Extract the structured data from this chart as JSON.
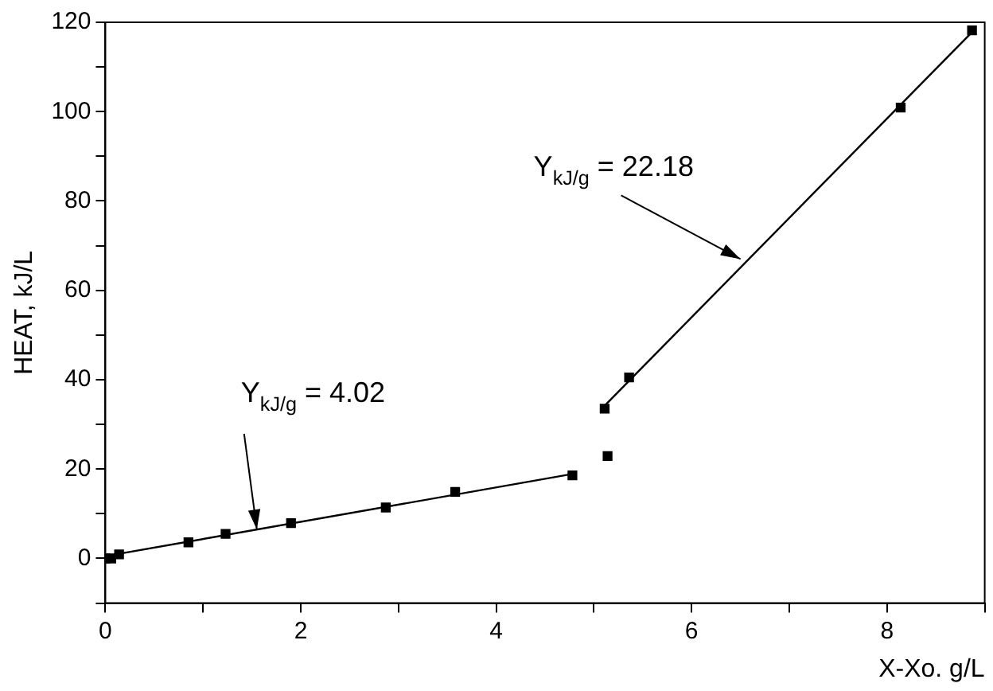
{
  "chart_data": {
    "type": "scatter",
    "xlabel": "X-Xo. g/L",
    "ylabel": "HEAT, kJ/L",
    "xlim": [
      0,
      9
    ],
    "xticks": [
      0,
      {
        "value": 1,
        "label": null
      },
      2,
      {
        "value": 3,
        "label": null
      },
      4,
      {
        "value": 5,
        "label": null
      },
      6,
      {
        "value": 7,
        "label": null
      },
      8,
      {
        "value": 9,
        "label": null
      }
    ],
    "ylim": [
      -10,
      120
    ],
    "yticks": [
      {
        "value": -10,
        "label": null
      },
      0,
      {
        "value": 10,
        "label": null
      },
      20,
      {
        "value": 30,
        "label": null
      },
      40,
      {
        "value": 50,
        "label": null
      },
      60,
      {
        "value": 70,
        "label": null
      },
      80,
      {
        "value": 90,
        "label": null
      },
      100,
      {
        "value": 110,
        "label": null
      },
      120
    ],
    "grid": false,
    "legend": false,
    "series": [
      {
        "color": "#000000",
        "marker": "square",
        "x": [
          0,
          0.06,
          0.14,
          0.85,
          1.23,
          1.9,
          2.87,
          3.58,
          4.78,
          5.11,
          5.14,
          5.36,
          8.14,
          8.87
        ],
        "values": [
          0,
          0,
          0.9,
          3.6,
          5.5,
          7.9,
          11.4,
          14.9,
          18.6,
          33.5,
          22.9,
          40.5,
          100.9,
          118.2
        ]
      },
      {
        "type": "line",
        "color": "#000000",
        "marker": "none",
        "x": [
          0,
          4.78
        ],
        "values": [
          0.5,
          18.9
        ]
      },
      {
        "type": "line",
        "color": "#000000",
        "marker": "none",
        "x": [
          5.11,
          8.87
        ],
        "values": [
          34.2,
          117.8
        ]
      }
    ],
    "annotations": [
      {
        "text": "Y$_{kJ/g}$ = 4.02",
        "x": 1.55,
        "y": 6.5
      },
      {
        "text": "Y$_{kJ/g}$ = 22.18",
        "x": 6.5,
        "y": 67
      }
    ]
  }
}
